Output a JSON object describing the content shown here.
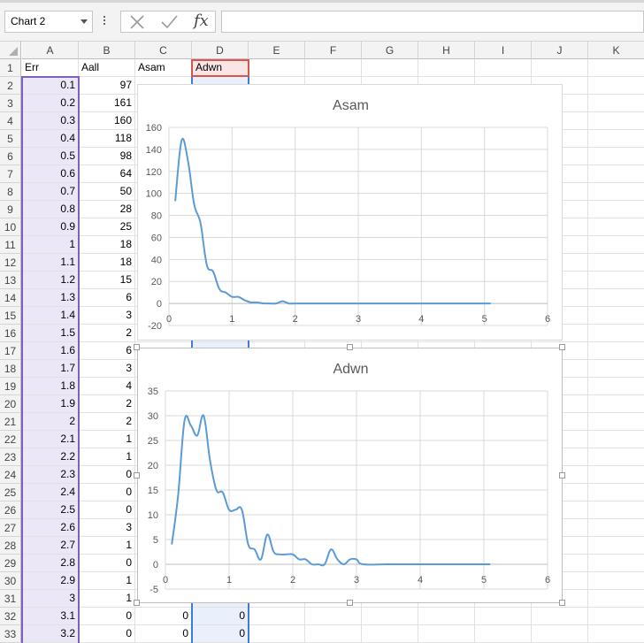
{
  "name_box": {
    "value": "Chart 2"
  },
  "formula_bar": {
    "fx_label": "fx",
    "value": ""
  },
  "columns": [
    "A",
    "B",
    "C",
    "D",
    "E",
    "F",
    "G",
    "H",
    "I",
    "J",
    "K"
  ],
  "rows": [
    {
      "n": "1",
      "A": "Err",
      "B": "Aall",
      "C": "Asam",
      "D": "Adwn"
    },
    {
      "n": "2",
      "A": "0.1",
      "B": "97"
    },
    {
      "n": "3",
      "A": "0.2",
      "B": "161"
    },
    {
      "n": "4",
      "A": "0.3",
      "B": "160"
    },
    {
      "n": "5",
      "A": "0.4",
      "B": "118"
    },
    {
      "n": "6",
      "A": "0.5",
      "B": "98"
    },
    {
      "n": "7",
      "A": "0.6",
      "B": "64"
    },
    {
      "n": "8",
      "A": "0.7",
      "B": "50"
    },
    {
      "n": "9",
      "A": "0.8",
      "B": "28"
    },
    {
      "n": "10",
      "A": "0.9",
      "B": "25"
    },
    {
      "n": "11",
      "A": "1",
      "B": "18"
    },
    {
      "n": "12",
      "A": "1.1",
      "B": "18"
    },
    {
      "n": "13",
      "A": "1.2",
      "B": "15"
    },
    {
      "n": "14",
      "A": "1.3",
      "B": "6"
    },
    {
      "n": "15",
      "A": "1.4",
      "B": "3"
    },
    {
      "n": "16",
      "A": "1.5",
      "B": "2"
    },
    {
      "n": "17",
      "A": "1.6",
      "B": "6"
    },
    {
      "n": "18",
      "A": "1.7",
      "B": "3"
    },
    {
      "n": "19",
      "A": "1.8",
      "B": "4"
    },
    {
      "n": "20",
      "A": "1.9",
      "B": "2"
    },
    {
      "n": "21",
      "A": "2",
      "B": "2"
    },
    {
      "n": "22",
      "A": "2.1",
      "B": "1"
    },
    {
      "n": "23",
      "A": "2.2",
      "B": "1"
    },
    {
      "n": "24",
      "A": "2.3",
      "B": "0"
    },
    {
      "n": "25",
      "A": "2.4",
      "B": "0"
    },
    {
      "n": "26",
      "A": "2.5",
      "B": "0"
    },
    {
      "n": "27",
      "A": "2.6",
      "B": "3"
    },
    {
      "n": "28",
      "A": "2.7",
      "B": "1"
    },
    {
      "n": "29",
      "A": "2.8",
      "B": "0"
    },
    {
      "n": "30",
      "A": "2.9",
      "B": "1"
    },
    {
      "n": "31",
      "A": "3",
      "B": "1"
    },
    {
      "n": "32",
      "A": "3.1",
      "B": "0",
      "C": "0",
      "D": "0"
    },
    {
      "n": "33",
      "A": "3.2",
      "B": "0",
      "C": "0",
      "D": "0"
    }
  ],
  "chart_data": [
    {
      "type": "line",
      "title": "Asam",
      "xlim": [
        0,
        6
      ],
      "ylim": [
        -20,
        160
      ],
      "x_ticks": [
        "0",
        "1",
        "2",
        "3",
        "4",
        "5",
        "6"
      ],
      "y_ticks": [
        "-20",
        "0",
        "20",
        "40",
        "60",
        "80",
        "100",
        "120",
        "140",
        "160"
      ],
      "series_color": "#5b9bd5",
      "grid": true,
      "x": [
        0.1,
        0.2,
        0.3,
        0.4,
        0.5,
        0.6,
        0.7,
        0.8,
        0.9,
        1.0,
        1.1,
        1.2,
        1.3,
        1.4,
        1.5,
        1.6,
        1.7,
        1.8,
        1.9,
        2.0,
        2.5,
        3.0,
        4.0,
        5.1
      ],
      "y": [
        93,
        148,
        130,
        90,
        73,
        35,
        29,
        13,
        10,
        6,
        6,
        3,
        1,
        1,
        0,
        0,
        0,
        2,
        0,
        0,
        0,
        0,
        0,
        0
      ]
    },
    {
      "type": "line",
      "title": "Adwn",
      "xlim": [
        0,
        6
      ],
      "ylim": [
        -5,
        35
      ],
      "x_ticks": [
        "0",
        "1",
        "2",
        "3",
        "4",
        "5",
        "6"
      ],
      "y_ticks": [
        "-5",
        "0",
        "5",
        "10",
        "15",
        "20",
        "25",
        "30",
        "35"
      ],
      "series_color": "#5b9bd5",
      "grid": true,
      "x": [
        0.1,
        0.2,
        0.3,
        0.4,
        0.5,
        0.6,
        0.7,
        0.8,
        0.9,
        1.0,
        1.1,
        1.2,
        1.3,
        1.4,
        1.5,
        1.6,
        1.7,
        1.8,
        1.9,
        2.0,
        2.1,
        2.2,
        2.3,
        2.4,
        2.5,
        2.6,
        2.7,
        2.8,
        2.9,
        3.0,
        3.1,
        3.5,
        4.0,
        5.1
      ],
      "y": [
        4,
        14,
        29,
        28,
        26,
        30,
        21,
        15,
        14.5,
        11,
        11,
        11,
        4,
        3,
        1,
        6,
        2.5,
        2,
        2,
        2,
        1,
        1,
        0,
        0,
        0,
        3,
        1,
        0,
        1,
        1,
        0,
        0,
        0,
        0
      ]
    }
  ]
}
